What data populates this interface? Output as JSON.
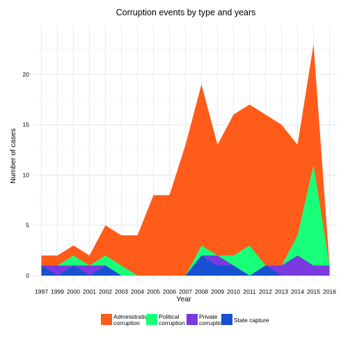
{
  "chart_data": {
    "type": "area",
    "title": "Corruption events by type and years",
    "xlabel": "Year",
    "ylabel": "Number of cases",
    "x": [
      1997,
      1999,
      2000,
      2001,
      2002,
      2003,
      2004,
      2005,
      2006,
      2007,
      2008,
      2009,
      2010,
      2011,
      2012,
      2013,
      2014,
      2015,
      2016
    ],
    "x_tick_labels": [
      "1997",
      "1999",
      "2000",
      "2001",
      "2002",
      "2003",
      "2004",
      "2005",
      "2006",
      "2007",
      "2008",
      "2009",
      "2010",
      "2011",
      "2012",
      "2013",
      "2014",
      "2015",
      "2016"
    ],
    "y_ticks": [
      0,
      5,
      10,
      15,
      20
    ],
    "ylim": [
      0,
      25
    ],
    "grid": true,
    "legend_position": "bottom",
    "series": [
      {
        "name": "Administrative corruption",
        "legend_lines": [
          "Administrative",
          "corruption"
        ],
        "color": "#FF5C1A",
        "values": [
          2,
          2,
          3,
          2,
          5,
          4,
          4,
          8,
          8,
          13,
          19,
          13,
          16,
          17,
          16,
          15,
          13,
          23,
          1
        ]
      },
      {
        "name": "Political corruption",
        "legend_lines": [
          "Political",
          "corruption"
        ],
        "color": "#1AFF7A",
        "values": [
          1,
          1,
          2,
          1,
          2,
          1,
          0,
          0,
          0,
          0,
          3,
          2,
          2,
          3,
          1,
          1,
          4,
          11,
          1
        ]
      },
      {
        "name": "Private corruption",
        "legend_lines": [
          "Private",
          "corruption"
        ],
        "color": "#7A3AE0",
        "values": [
          1,
          1,
          1,
          1,
          1,
          0,
          0,
          0,
          0,
          0,
          2,
          2,
          1,
          0,
          1,
          1,
          2,
          1,
          1
        ]
      },
      {
        "name": "State capture",
        "legend_lines": [
          "State capture"
        ],
        "color": "#1750D0",
        "values": [
          1,
          0,
          1,
          0,
          1,
          0,
          0,
          0,
          0,
          0,
          2,
          1,
          1,
          0,
          1,
          0,
          0,
          0,
          0
        ]
      }
    ]
  }
}
